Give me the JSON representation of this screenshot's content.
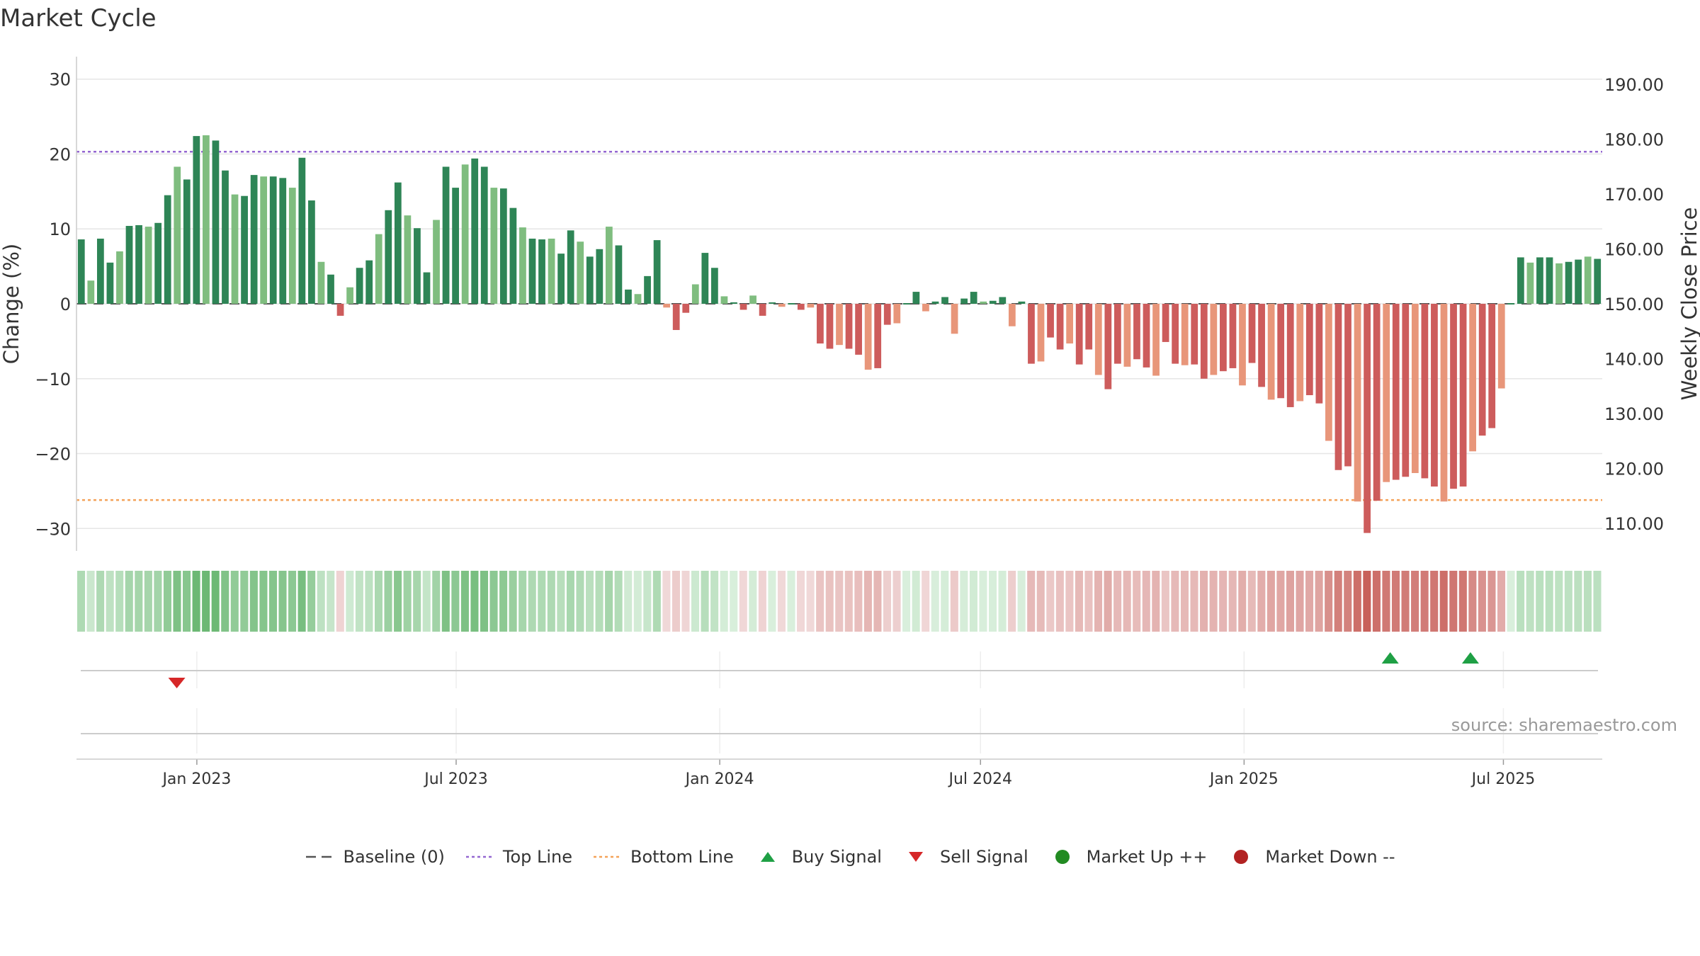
{
  "chart_data": {
    "type": "bar",
    "title": "Market Cycle",
    "ylabel": "Change (%)",
    "y2label": "Weekly Close Price",
    "ylim": [
      -33,
      33
    ],
    "yticks": [
      30,
      20,
      10,
      0,
      -10,
      -20,
      -30
    ],
    "y2lim": [
      105,
      195
    ],
    "y2ticks": [
      "190.00",
      "180.00",
      "170.00",
      "160.00",
      "150.00",
      "140.00",
      "130.00",
      "120.00",
      "110.00"
    ],
    "xstart": "2022-10-09",
    "xend": "2025-09-08",
    "xticks": [
      {
        "date": "2023-01-01",
        "label": "Jan 2023"
      },
      {
        "date": "2023-07-01",
        "label": "Jul 2023"
      },
      {
        "date": "2024-01-01",
        "label": "Jan 2024"
      },
      {
        "date": "2024-07-01",
        "label": "Jul 2024"
      },
      {
        "date": "2025-01-01",
        "label": "Jan 2025"
      },
      {
        "date": "2025-07-01",
        "label": "Jul 2025"
      }
    ],
    "top_line": 20.3,
    "bottom_line": -26.2,
    "grid": true,
    "source": "source: sharemaestro.com",
    "values": [
      8.6,
      3.1,
      8.7,
      5.5,
      7.0,
      10.4,
      10.5,
      10.3,
      10.8,
      14.5,
      18.3,
      16.6,
      22.4,
      22.5,
      21.8,
      17.8,
      14.6,
      14.4,
      17.2,
      17.0,
      17.0,
      16.8,
      15.5,
      19.5,
      13.8,
      5.6,
      3.9,
      -1.6,
      2.2,
      4.8,
      5.8,
      9.3,
      12.5,
      16.2,
      11.8,
      10.1,
      4.2,
      11.2,
      18.3,
      15.5,
      18.6,
      19.4,
      18.3,
      15.5,
      15.4,
      12.8,
      10.2,
      8.7,
      8.6,
      8.7,
      6.7,
      9.8,
      8.3,
      6.3,
      7.3,
      10.3,
      7.8,
      1.9,
      1.3,
      3.7,
      8.5,
      -0.5,
      -3.5,
      -1.2,
      2.6,
      6.8,
      4.8,
      1.0,
      0.2,
      -0.8,
      1.1,
      -1.6,
      0.1,
      -0.4,
      0.0,
      -0.8,
      -0.5,
      -5.3,
      -6.0,
      -5.5,
      -6.0,
      -6.8,
      -8.8,
      -8.6,
      -2.8,
      -2.6,
      0.0,
      1.6,
      -1.0,
      0.3,
      0.9,
      -4.0,
      0.7,
      1.6,
      0.3,
      0.4,
      0.9,
      -3.0,
      0.3,
      -8.0,
      -7.7,
      -4.5,
      -6.1,
      -5.3,
      -8.1,
      -6.1,
      -9.5,
      -11.4,
      -8.0,
      -8.4,
      -7.4,
      -8.5,
      -9.6,
      -5.1,
      -8.0,
      -8.2,
      -8.1,
      -10.0,
      -9.5,
      -9.0,
      -8.6,
      -10.9,
      -7.9,
      -11.1,
      -12.8,
      -12.6,
      -13.8,
      -13.0,
      -12.2,
      -13.3,
      -18.3,
      -22.2,
      -21.7,
      -26.4,
      -30.6,
      -26.3,
      -23.8,
      -23.5,
      -23.1,
      -22.6,
      -23.3,
      -24.4,
      -26.4,
      -24.7,
      -24.4,
      -19.7,
      -17.6,
      -16.6,
      -11.3,
      0.0,
      6.2,
      5.5,
      6.2,
      6.2,
      5.4,
      5.6,
      5.9,
      6.3,
      6.0
    ],
    "signals": [
      {
        "type": "sell",
        "date": "2022-12-18"
      },
      {
        "type": "buy",
        "date": "2025-04-13"
      },
      {
        "type": "buy",
        "date": "2025-06-08"
      }
    ],
    "legend": [
      {
        "key": "baseline",
        "label": "Baseline (0)"
      },
      {
        "key": "top",
        "label": "Top Line"
      },
      {
        "key": "bottom",
        "label": "Bottom Line"
      },
      {
        "key": "buy",
        "label": "Buy Signal"
      },
      {
        "key": "sell",
        "label": "Sell Signal"
      },
      {
        "key": "up",
        "label": "Market Up ++"
      },
      {
        "key": "down",
        "label": "Market Down --"
      }
    ],
    "colors": {
      "pos_dark": "#2e8556",
      "pos_light": "#7fbd7f",
      "neg_dark": "#cd5c5c",
      "neg_light": "#e8967a",
      "top_line": "#9467d1",
      "bottom_line": "#f4a259",
      "buy": "#1fa045",
      "sell": "#d62728",
      "market_up": "#228b22",
      "market_down": "#b22222",
      "baseline": "#555555"
    }
  }
}
